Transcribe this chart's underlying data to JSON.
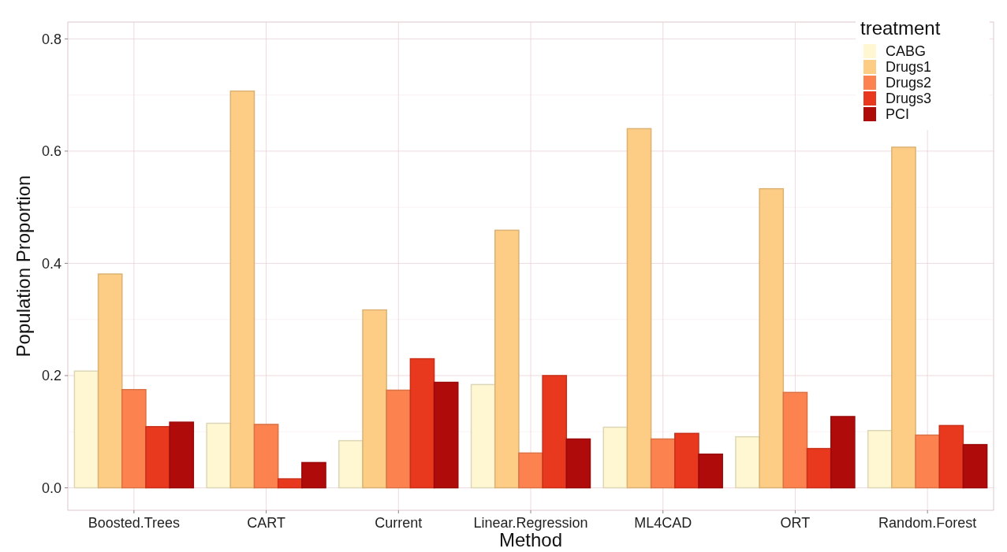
{
  "chart_data": {
    "type": "bar",
    "xlabel": "Method",
    "ylabel": "Population Proportion",
    "legend_title": "treatment",
    "categories": [
      "Boosted.Trees",
      "CART",
      "Current",
      "Linear.Regression",
      "ML4CAD",
      "ORT",
      "Random.Forest"
    ],
    "series": [
      {
        "name": "CABG",
        "color": "#fef7d2",
        "values": [
          0.208,
          0.115,
          0.084,
          0.184,
          0.108,
          0.091,
          0.102
        ]
      },
      {
        "name": "Drugs1",
        "color": "#fdcd85",
        "values": [
          0.381,
          0.707,
          0.317,
          0.459,
          0.64,
          0.533,
          0.607
        ]
      },
      {
        "name": "Drugs2",
        "color": "#fc8350",
        "values": [
          0.175,
          0.113,
          0.174,
          0.062,
          0.087,
          0.17,
          0.094
        ]
      },
      {
        "name": "Drugs3",
        "color": "#e8381e",
        "values": [
          0.109,
          0.016,
          0.23,
          0.2,
          0.097,
          0.07,
          0.111
        ]
      },
      {
        "name": "PCI",
        "color": "#b00b0b",
        "values": [
          0.117,
          0.045,
          0.188,
          0.087,
          0.06,
          0.127,
          0.077
        ]
      }
    ],
    "ylim": [
      -0.04,
      0.83
    ],
    "yticks": [
      {
        "value": 0,
        "label": "0.0"
      },
      {
        "value": 0.2,
        "label": "0.2"
      },
      {
        "value": 0.4,
        "label": "0.4"
      },
      {
        "value": 0.6,
        "label": "0.6"
      },
      {
        "value": 0.8,
        "label": "0.8"
      }
    ],
    "grid": true,
    "legend": "top right"
  }
}
